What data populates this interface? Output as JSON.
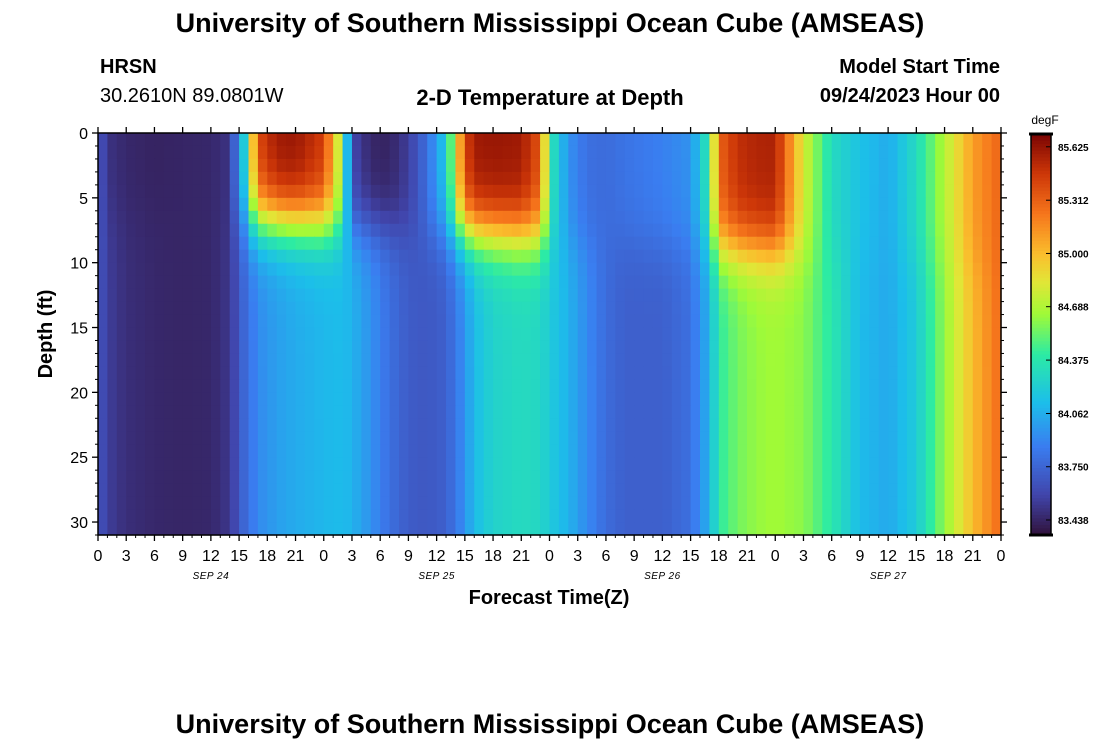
{
  "title": "University of Southern Mississippi Ocean Cube (AMSEAS)",
  "footer_title": "University of Southern Mississippi Ocean Cube (AMSEAS)",
  "header": {
    "station": "HRSN",
    "coords": "30.2610N  89.0801W",
    "plot_title": "2-D Temperature at Depth",
    "model_start_label": "Model Start Time",
    "model_start_value": "09/24/2023 Hour 00"
  },
  "chart_data": {
    "type": "heatmap",
    "title": "2-D Temperature at Depth",
    "xlabel": "Forecast Time(Z)",
    "ylabel": "Depth (ft)",
    "x_range_hours": [
      0,
      96
    ],
    "x_tick_labels": [
      "0",
      "3",
      "6",
      "9",
      "12",
      "15",
      "18",
      "21",
      "0",
      "3",
      "6",
      "9",
      "12",
      "15",
      "18",
      "21",
      "0",
      "3",
      "6",
      "9",
      "12",
      "15",
      "18",
      "21",
      "0",
      "3",
      "6",
      "9",
      "12",
      "15",
      "18",
      "21",
      "0"
    ],
    "day_labels": [
      "SEP 24",
      "SEP 25",
      "SEP 26",
      "SEP 27"
    ],
    "y_range_ft": [
      0,
      31
    ],
    "y_ticks": [
      0,
      5,
      10,
      15,
      20,
      25,
      30
    ],
    "colorbar": {
      "unit": "degF",
      "ticks": [
        "85.625",
        "85.312",
        "85.000",
        "84.688",
        "84.375",
        "84.062",
        "83.750",
        "83.438"
      ],
      "range": [
        83.35,
        85.7
      ]
    },
    "temperature_profile_f": {
      "hours": [
        0,
        1,
        3,
        6,
        9,
        12,
        14,
        15.5,
        17,
        19,
        21,
        24,
        26,
        27,
        29,
        31,
        33,
        35,
        37,
        39,
        40,
        42,
        45,
        47,
        48,
        50,
        52,
        54,
        56,
        60,
        63,
        65,
        66,
        68,
        70,
        72,
        75,
        78,
        81,
        84,
        87,
        90,
        93,
        96
      ],
      "surface": [
        83.7,
        83.5,
        83.45,
        83.43,
        83.44,
        83.45,
        83.5,
        84.2,
        85.4,
        85.6,
        85.62,
        85.45,
        84.6,
        83.6,
        83.44,
        83.43,
        83.55,
        83.8,
        84.2,
        85.4,
        85.6,
        85.62,
        85.6,
        85.35,
        84.4,
        83.95,
        83.8,
        83.78,
        83.82,
        83.88,
        83.95,
        84.4,
        85.3,
        85.5,
        85.55,
        85.56,
        84.8,
        84.3,
        84.15,
        84.05,
        84.3,
        84.7,
        85.1,
        85.3
      ],
      "deep": [
        83.68,
        83.55,
        83.48,
        83.45,
        83.44,
        83.45,
        83.52,
        83.75,
        83.92,
        84.0,
        84.05,
        84.1,
        84.12,
        84.08,
        83.95,
        83.8,
        83.7,
        83.68,
        83.72,
        83.95,
        84.12,
        84.25,
        84.3,
        84.28,
        84.2,
        84.08,
        83.92,
        83.78,
        83.72,
        83.72,
        83.8,
        84.08,
        84.4,
        84.55,
        84.62,
        84.65,
        84.6,
        84.38,
        84.12,
        84.04,
        84.2,
        84.62,
        85.0,
        85.28
      ]
    }
  }
}
